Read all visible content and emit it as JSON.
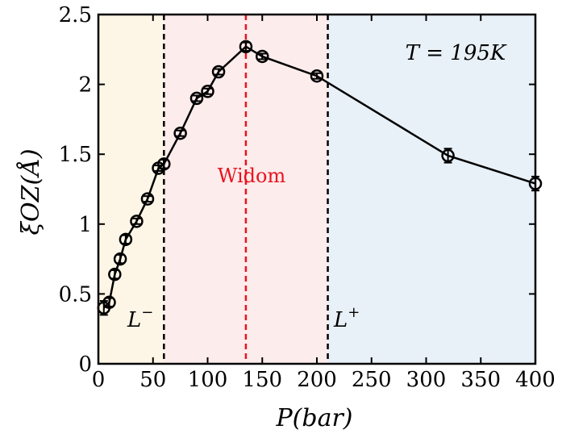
{
  "chart_data": {
    "type": "line",
    "xlabel": "P(bar)",
    "ylabel": "ξOZ(Å)",
    "xlim": [
      0,
      400
    ],
    "ylim": [
      0,
      2.5
    ],
    "xticks": [
      0,
      50,
      100,
      150,
      200,
      250,
      300,
      350,
      400
    ],
    "yticks": [
      0,
      0.5,
      1,
      1.5,
      2,
      2.5
    ],
    "xtick_labels": [
      "0",
      "50",
      "100",
      "150",
      "200",
      "250",
      "300",
      "350",
      "400"
    ],
    "ytick_labels": [
      "0",
      "0.5",
      "1",
      "1.5",
      "2",
      "2.5"
    ],
    "grid": false,
    "series": [
      {
        "x": [
          5,
          10,
          15,
          20,
          25,
          35,
          45,
          55,
          60,
          75,
          90,
          100,
          110,
          135,
          150,
          200,
          320,
          400
        ],
        "y": [
          0.4,
          0.44,
          0.64,
          0.75,
          0.89,
          1.02,
          1.18,
          1.4,
          1.43,
          1.65,
          1.9,
          1.95,
          2.09,
          2.27,
          2.2,
          2.06,
          1.49,
          1.29
        ],
        "yerr": [
          0.05,
          0.03,
          0.03,
          0.03,
          0.03,
          0.02,
          0.02,
          0.02,
          0.03,
          0.02,
          0.02,
          0.02,
          0.02,
          0.03,
          0.02,
          0.02,
          0.05,
          0.05
        ],
        "color": "#000000",
        "marker": "open-circle"
      }
    ],
    "regions": [
      {
        "x0": 0,
        "x1": 60,
        "color": "#fdf6e6"
      },
      {
        "x0": 60,
        "x1": 210,
        "color": "#fdecec"
      },
      {
        "x0": 210,
        "x1": 400,
        "color": "#e9f1f8"
      }
    ],
    "vlines": [
      {
        "x": 60,
        "color": "#000000",
        "style": "dashed"
      },
      {
        "x": 135,
        "color": "#e8141e",
        "style": "dashed"
      },
      {
        "x": 210,
        "color": "#000000",
        "style": "dashed"
      }
    ],
    "annotations": {
      "temperature": "T = 195K",
      "widom": "Widom",
      "l_minus": "L",
      "l_minus_sup": "−",
      "l_plus": "L",
      "l_plus_sup": "+"
    }
  }
}
